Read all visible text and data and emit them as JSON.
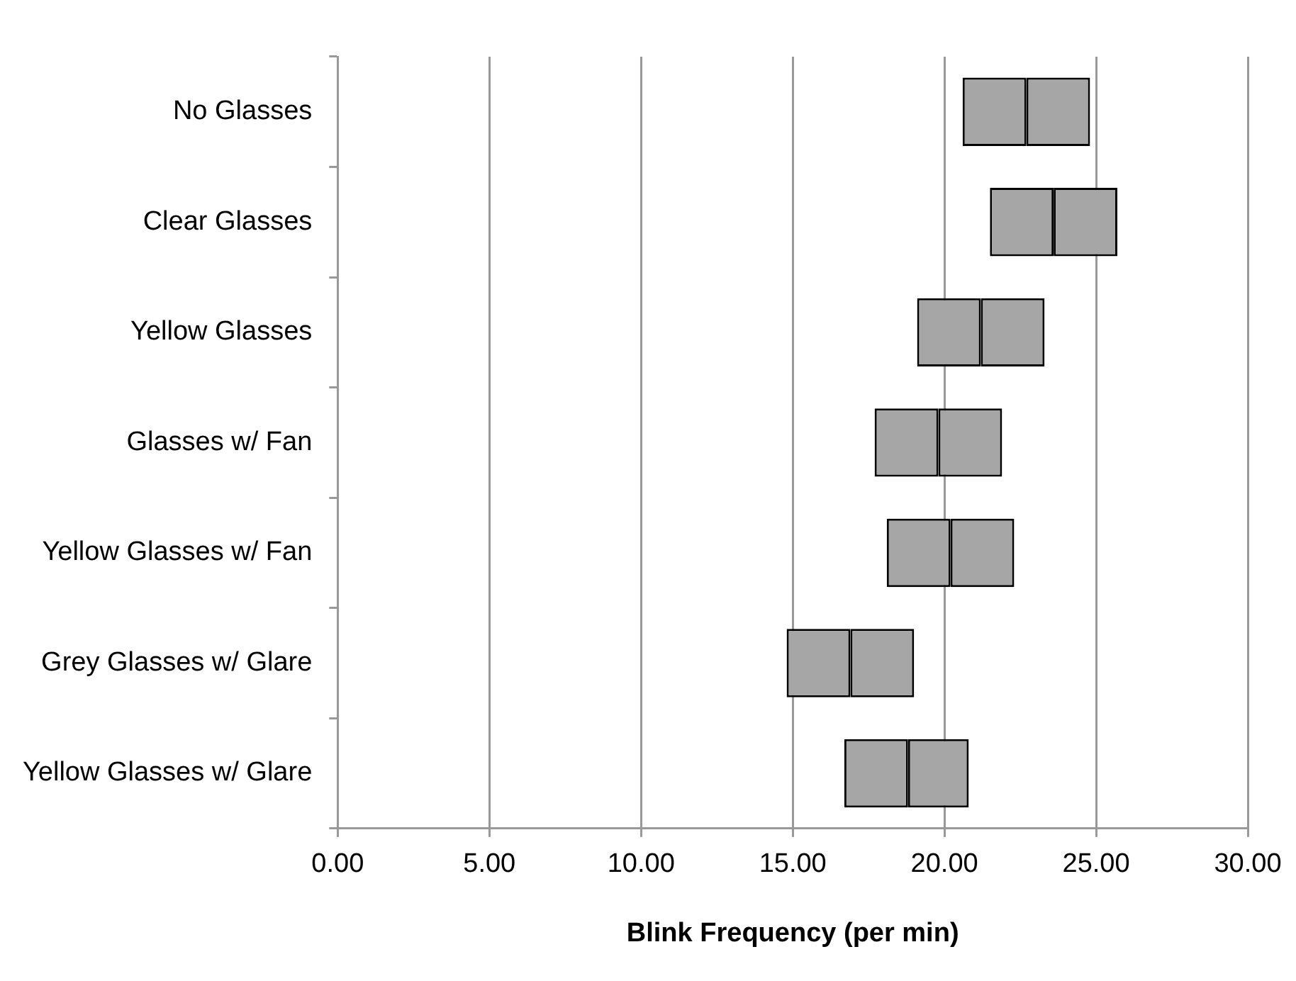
{
  "chart_data": {
    "type": "bar",
    "orientation": "horizontal",
    "xlabel": "Blink Frequency (per min)",
    "categories": [
      "No Glasses",
      "Clear Glasses",
      "Yellow Glasses",
      "Glasses w/ Fan",
      "Yellow Glasses w/ Fan",
      "Grey Glasses w/ Glare",
      "Yellow Glasses w/ Glare"
    ],
    "series": [
      {
        "color": "#a6a6a6",
        "base": [
          20.6,
          21.5,
          19.1,
          17.7,
          18.1,
          14.8,
          16.7
        ],
        "values": [
          2.1,
          2.1,
          2.1,
          2.1,
          2.1,
          2.1,
          2.1
        ]
      },
      {
        "color": "#a6a6a6",
        "base": [
          22.7,
          23.6,
          21.2,
          19.8,
          20.2,
          16.9,
          18.8
        ],
        "values": [
          2.1,
          2.1,
          2.1,
          2.1,
          2.1,
          2.1,
          2.0
        ]
      }
    ],
    "xlim": [
      0,
      30
    ],
    "xticks": [
      {
        "value": 0,
        "label": "0.00"
      },
      {
        "value": 5,
        "label": "5.00"
      },
      {
        "value": 10,
        "label": "10.00"
      },
      {
        "value": 15,
        "label": "15.00"
      },
      {
        "value": 20,
        "label": "20.00"
      },
      {
        "value": 25,
        "label": "25.00"
      },
      {
        "value": 30,
        "label": "30.00"
      }
    ],
    "grid": "x",
    "legend": false
  }
}
